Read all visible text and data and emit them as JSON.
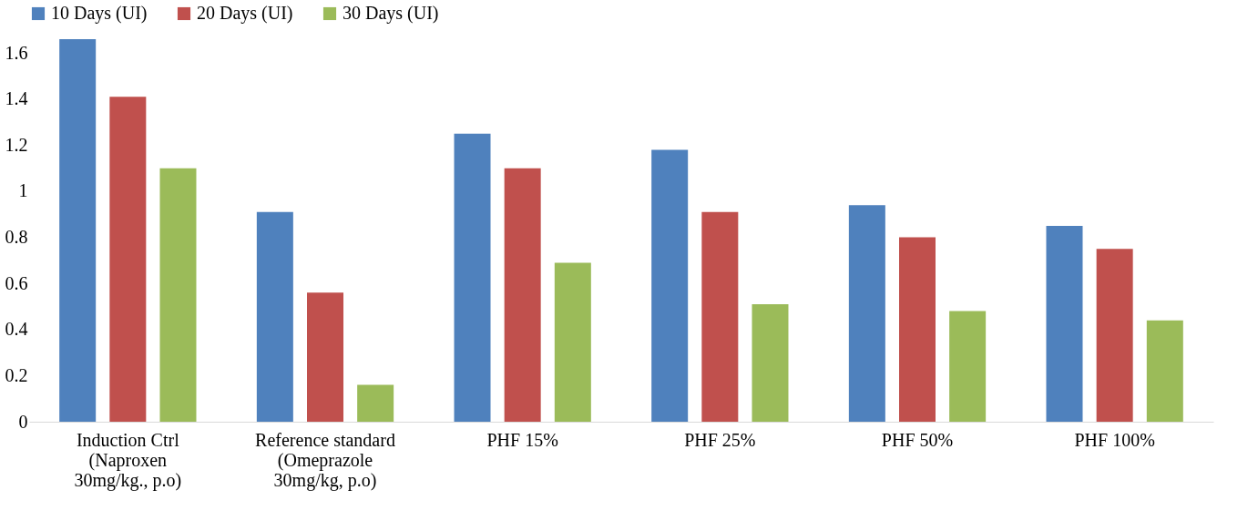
{
  "chart_data": {
    "type": "bar",
    "categories": [
      "Induction Ctrl\n(Naproxen\n30mg/kg., p.o)",
      "Reference standard\n(Omeprazole\n30mg/kg, p.o)",
      "PHF 15%",
      "PHF 25%",
      "PHF 50%",
      "PHF 100%"
    ],
    "series": [
      {
        "name": "10 Days (UI)",
        "color": "#4f81bd",
        "values": [
          1.66,
          0.91,
          1.25,
          1.18,
          0.94,
          0.85
        ]
      },
      {
        "name": "20 Days (UI)",
        "color": "#c0504d",
        "values": [
          1.41,
          0.56,
          1.1,
          0.91,
          0.8,
          0.75
        ]
      },
      {
        "name": "30 Days (UI)",
        "color": "#9bbb59",
        "values": [
          1.1,
          0.16,
          0.69,
          0.51,
          0.48,
          0.44
        ]
      }
    ],
    "ylim": [
      0,
      1.66
    ],
    "yticks": [
      0,
      0.2,
      0.4,
      0.6,
      0.8,
      1,
      1.2,
      1.4,
      1.6
    ],
    "grid": false,
    "legend": "top"
  }
}
